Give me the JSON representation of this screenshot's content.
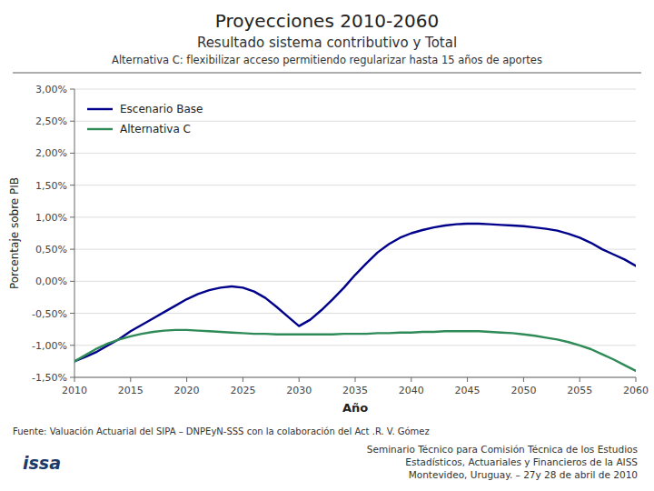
{
  "chart_data": {
    "type": "line",
    "title": "Proyecciones 2010-2060",
    "subtitle": [
      "Resultado sistema contributivo y Total",
      "Alternativa C: flexibilizar acceso permitiendo regularizar hasta 15 años de aportes"
    ],
    "x_label": "Año",
    "y_label": "Porcentaje sobre PIB",
    "annotations": [
      "Fuente: Valuación Actuarial del SIPA – DNPEyN-SSS con la colaboración del Act .R. V. Gómez",
      "Seminario Técnico para Comisión Técnica de los Estudios\nEstadísticos, Actuariales y Financieros de la AISS\nMontevideo, Uruguay. – 27y 28 de abril de 2010",
      "issa"
    ],
    "x": [
      2010,
      2011,
      2012,
      2013,
      2014,
      2015,
      2016,
      2017,
      2018,
      2019,
      2020,
      2021,
      2022,
      2023,
      2024,
      2025,
      2026,
      2027,
      2028,
      2029,
      2030,
      2031,
      2032,
      2033,
      2034,
      2035,
      2036,
      2037,
      2038,
      2039,
      2040,
      2041,
      2042,
      2043,
      2044,
      2045,
      2046,
      2047,
      2048,
      2049,
      2050,
      2051,
      2052,
      2053,
      2054,
      2055,
      2056,
      2057,
      2058,
      2059,
      2060
    ],
    "series": [
      {
        "name": "Escenario Base",
        "color": "#00008B",
        "values": [
          -1.25,
          -1.18,
          -1.1,
          -1.0,
          -0.9,
          -0.78,
          -0.68,
          -0.58,
          -0.48,
          -0.38,
          -0.28,
          -0.2,
          -0.14,
          -0.1,
          -0.08,
          -0.1,
          -0.16,
          -0.26,
          -0.4,
          -0.55,
          -0.7,
          -0.6,
          -0.45,
          -0.28,
          -0.1,
          0.1,
          0.28,
          0.45,
          0.58,
          0.68,
          0.75,
          0.8,
          0.84,
          0.87,
          0.89,
          0.9,
          0.9,
          0.89,
          0.88,
          0.87,
          0.86,
          0.84,
          0.82,
          0.79,
          0.74,
          0.68,
          0.6,
          0.5,
          0.42,
          0.34,
          0.24
        ]
      },
      {
        "name": "Alternativa C",
        "color": "#2E8B57",
        "values": [
          -1.25,
          -1.15,
          -1.05,
          -0.97,
          -0.91,
          -0.86,
          -0.82,
          -0.79,
          -0.77,
          -0.76,
          -0.76,
          -0.77,
          -0.78,
          -0.79,
          -0.8,
          -0.81,
          -0.82,
          -0.82,
          -0.83,
          -0.83,
          -0.83,
          -0.83,
          -0.83,
          -0.83,
          -0.82,
          -0.82,
          -0.82,
          -0.81,
          -0.81,
          -0.8,
          -0.8,
          -0.79,
          -0.79,
          -0.78,
          -0.78,
          -0.78,
          -0.78,
          -0.79,
          -0.8,
          -0.81,
          -0.83,
          -0.85,
          -0.88,
          -0.91,
          -0.95,
          -1.0,
          -1.06,
          -1.14,
          -1.22,
          -1.31,
          -1.4
        ]
      }
    ],
    "xlim": [
      2010,
      2060
    ],
    "ylim": [
      -1.5,
      3.0
    ],
    "xticks": [
      2010,
      2015,
      2020,
      2025,
      2030,
      2035,
      2040,
      2045,
      2050,
      2055,
      2060
    ],
    "yticks": [
      {
        "value": -1.5,
        "label": "-1,50%"
      },
      {
        "value": -1.0,
        "label": "-1,00%"
      },
      {
        "value": -0.5,
        "label": "-0,50%"
      },
      {
        "value": 0.0,
        "label": "0,00%"
      },
      {
        "value": 0.5,
        "label": "0,50%"
      },
      {
        "value": 1.0,
        "label": "1,00%"
      },
      {
        "value": 1.5,
        "label": "1,50%"
      },
      {
        "value": 2.0,
        "label": "2,00%"
      },
      {
        "value": 2.5,
        "label": "2,50%"
      },
      {
        "value": 3.0,
        "label": "3,00%"
      }
    ],
    "grid": true,
    "legend": "upper left"
  }
}
